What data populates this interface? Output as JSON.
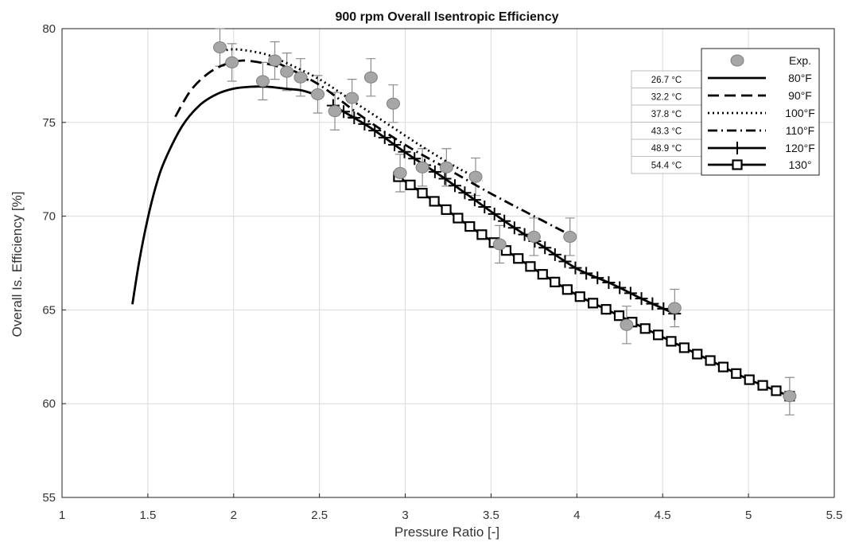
{
  "chart_data": {
    "type": "line",
    "title": "900 rpm Overall Isentropic Efficiency",
    "xlabel": "Pressure Ratio [-]",
    "ylabel": "Overall Is. Efficiency [%]",
    "xlim": [
      1,
      5.5
    ],
    "ylim": [
      55,
      80
    ],
    "xticks": [
      1,
      1.5,
      2,
      2.5,
      3,
      3.5,
      4,
      4.5,
      5,
      5.5
    ],
    "xtick_labels": [
      "1",
      "1.5",
      "2",
      "2.5",
      "3",
      "3.5",
      "4",
      "4.5",
      "5",
      "5.5"
    ],
    "yticks": [
      55,
      60,
      65,
      70,
      75,
      80
    ],
    "ytick_labels": [
      "55",
      "60",
      "65",
      "70",
      "75",
      "80"
    ],
    "grid": true,
    "legend_position": "top-right",
    "colors": {
      "line": "#000000",
      "marker_fill": "#a6a6a6",
      "marker_edge": "#7f7f7f",
      "errorbar": "#8c8c8c",
      "grid": "#d9d9d9"
    },
    "experimental": {
      "name": "Exp.",
      "error": 1.0,
      "points": [
        [
          1.92,
          79.0
        ],
        [
          1.99,
          78.2
        ],
        [
          2.17,
          77.2
        ],
        [
          2.24,
          78.3
        ],
        [
          2.31,
          77.7
        ],
        [
          2.39,
          77.4
        ],
        [
          2.49,
          76.5
        ],
        [
          2.59,
          75.6
        ],
        [
          2.69,
          76.3
        ],
        [
          2.8,
          77.4
        ],
        [
          2.93,
          76.0
        ],
        [
          2.97,
          72.3
        ],
        [
          3.1,
          72.6
        ],
        [
          3.24,
          72.6
        ],
        [
          3.41,
          72.1
        ],
        [
          3.55,
          68.5
        ],
        [
          3.75,
          68.9
        ],
        [
          3.96,
          68.9
        ],
        [
          4.29,
          64.2
        ],
        [
          4.57,
          65.1
        ],
        [
          5.24,
          60.4
        ]
      ]
    },
    "series": [
      {
        "name": "80°F",
        "celsius": "26.7 °C",
        "style": "solid",
        "marker": "none",
        "points": [
          [
            1.41,
            65.3
          ],
          [
            1.45,
            67.6
          ],
          [
            1.5,
            69.9
          ],
          [
            1.55,
            71.7
          ],
          [
            1.6,
            73.0
          ],
          [
            1.7,
            74.8
          ],
          [
            1.8,
            75.9
          ],
          [
            1.9,
            76.5
          ],
          [
            2.0,
            76.8
          ],
          [
            2.1,
            76.9
          ],
          [
            2.2,
            76.9
          ],
          [
            2.3,
            76.8
          ],
          [
            2.4,
            76.7
          ],
          [
            2.5,
            76.4
          ]
        ]
      },
      {
        "name": "90°F",
        "celsius": "32.2 °C",
        "style": "dashed",
        "marker": "none",
        "points": [
          [
            1.66,
            75.3
          ],
          [
            1.75,
            76.7
          ],
          [
            1.85,
            77.6
          ],
          [
            1.95,
            78.1
          ],
          [
            2.05,
            78.3
          ],
          [
            2.15,
            78.2
          ],
          [
            2.25,
            78.0
          ],
          [
            2.35,
            77.6
          ],
          [
            2.45,
            77.2
          ]
        ]
      },
      {
        "name": "100°F",
        "celsius": "37.8 °C",
        "style": "dotted",
        "marker": "none",
        "points": [
          [
            1.93,
            78.8
          ],
          [
            2.0,
            78.9
          ],
          [
            2.1,
            78.8
          ],
          [
            2.2,
            78.6
          ],
          [
            2.3,
            78.2
          ],
          [
            2.5,
            77.3
          ],
          [
            2.7,
            76.1
          ],
          [
            2.9,
            74.9
          ],
          [
            3.1,
            73.7
          ],
          [
            3.3,
            72.6
          ],
          [
            3.45,
            71.9
          ]
        ]
      },
      {
        "name": "110°F",
        "celsius": "43.3 °C",
        "style": "dashdot",
        "marker": "none",
        "points": [
          [
            2.25,
            78.2
          ],
          [
            2.5,
            77.0
          ],
          [
            2.75,
            75.3
          ],
          [
            3.0,
            73.8
          ],
          [
            3.25,
            72.5
          ],
          [
            3.5,
            71.2
          ],
          [
            3.75,
            70.0
          ],
          [
            3.96,
            69.0
          ]
        ]
      },
      {
        "name": "120°F",
        "celsius": "48.9 °C",
        "style": "solid",
        "marker": "plus",
        "points": [
          [
            2.58,
            75.9
          ],
          [
            2.8,
            74.7
          ],
          [
            3.0,
            73.4
          ],
          [
            3.2,
            72.2
          ],
          [
            3.4,
            70.9
          ],
          [
            3.6,
            69.6
          ],
          [
            3.8,
            68.4
          ],
          [
            4.0,
            67.2
          ],
          [
            4.2,
            66.4
          ],
          [
            4.4,
            65.5
          ],
          [
            4.57,
            64.8
          ]
        ]
      },
      {
        "name": "130°",
        "celsius": "54.4 °C",
        "style": "solid",
        "marker": "square",
        "points": [
          [
            2.96,
            72.1
          ],
          [
            3.2,
            70.6
          ],
          [
            3.4,
            69.3
          ],
          [
            3.6,
            68.1
          ],
          [
            3.8,
            66.9
          ],
          [
            4.0,
            65.8
          ],
          [
            4.2,
            64.9
          ],
          [
            4.4,
            64.0
          ],
          [
            4.6,
            63.1
          ],
          [
            4.8,
            62.2
          ],
          [
            5.0,
            61.3
          ],
          [
            5.24,
            60.4
          ]
        ]
      }
    ]
  }
}
